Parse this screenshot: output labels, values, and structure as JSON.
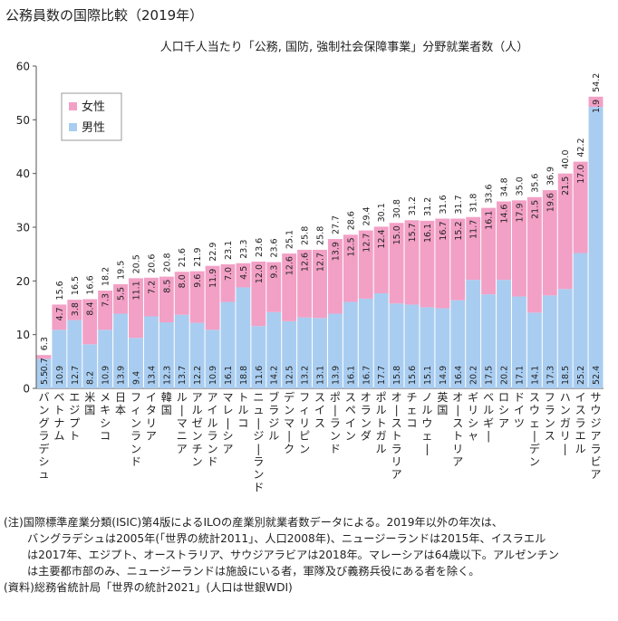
{
  "page_title": "公務員数の国際比較（2019年）",
  "chart_data": {
    "type": "bar",
    "stacked": true,
    "title": "人口千人当たり「公務, 国防, 強制社会保障事業」分野就業者数（人）",
    "xlabel": "",
    "ylabel": "",
    "ylim": [
      0,
      60
    ],
    "yticks": [
      0,
      10,
      20,
      30,
      40,
      50,
      60
    ],
    "grid": false,
    "legend_position": "top-left",
    "categories": [
      "バングラデシュ",
      "ベトナム",
      "エジプト",
      "米国",
      "メキシコ",
      "日本",
      "フィンランド",
      "イタリア",
      "韓国",
      "ルーマニア",
      "アルゼンチン",
      "アイルランド",
      "マレーシア",
      "トルコ",
      "ニュージーランド",
      "ブラジル",
      "デンマーク",
      "フィリピン",
      "スイス",
      "ポーランド",
      "スペイン",
      "オランダ",
      "ポルトガル",
      "オーストラリア",
      "チェコ",
      "ノルウェー",
      "英国",
      "オーストリア",
      "ギリシャ",
      "ベルギー",
      "ロシア",
      "ドイツ",
      "スウェーデン",
      "フランス",
      "ハンガリー",
      "イスラエル",
      "サウジアラビア"
    ],
    "series": [
      {
        "name": "男性",
        "color": "#a9cdf0",
        "values": [
          5.5,
          10.9,
          12.7,
          8.2,
          10.9,
          13.9,
          9.4,
          13.4,
          12.3,
          13.7,
          12.2,
          10.9,
          16.1,
          18.8,
          11.6,
          14.2,
          12.5,
          13.2,
          13.1,
          13.9,
          16.1,
          16.7,
          17.7,
          15.8,
          15.6,
          15.1,
          14.9,
          16.4,
          20.2,
          17.5,
          20.2,
          17.1,
          14.1,
          17.3,
          18.5,
          25.2,
          52.4
        ]
      },
      {
        "name": "女性",
        "color": "#f2a0c6",
        "values": [
          0.7,
          4.7,
          3.8,
          8.4,
          7.3,
          5.5,
          11.1,
          7.2,
          8.5,
          8.0,
          9.6,
          11.9,
          7.0,
          4.5,
          12.0,
          9.3,
          12.6,
          12.6,
          12.7,
          13.9,
          12.5,
          12.7,
          12.4,
          15.0,
          15.7,
          16.1,
          16.7,
          15.2,
          11.7,
          16.1,
          14.6,
          17.9,
          21.5,
          19.6,
          21.5,
          17.0,
          1.9
        ]
      }
    ],
    "totals": [
      6.3,
      15.6,
      16.5,
      16.6,
      18.2,
      19.5,
      20.5,
      20.6,
      20.8,
      21.6,
      21.9,
      22.9,
      23.1,
      23.3,
      23.6,
      23.6,
      25.1,
      25.8,
      25.8,
      27.7,
      28.6,
      29.4,
      30.1,
      30.8,
      31.2,
      31.2,
      31.6,
      31.7,
      31.8,
      33.6,
      34.8,
      35.0,
      35.6,
      36.9,
      40.0,
      42.2,
      54.2
    ]
  },
  "notes": {
    "note1": "(注)国際標準産業分類(ISIC)第4版によるILOの産業別就業者数データによる。2019年以外の年次は、",
    "note2": "バングラデシュは2005年(「世界の統計2011」、人口2008年)、ニュージーランドは2015年、イスラエル",
    "note3": "は2017年、エジプト、オーストラリア、サウジアラビアは2018年。マレーシアは64歳以下。アルゼンチン",
    "note4": "は主要都市部のみ、ニュージーランドは施設にいる者，軍隊及び義務兵役にある者を除く。",
    "source": "(資料)総務省統計局「世界の統計2021」(人口は世銀WDI)"
  }
}
